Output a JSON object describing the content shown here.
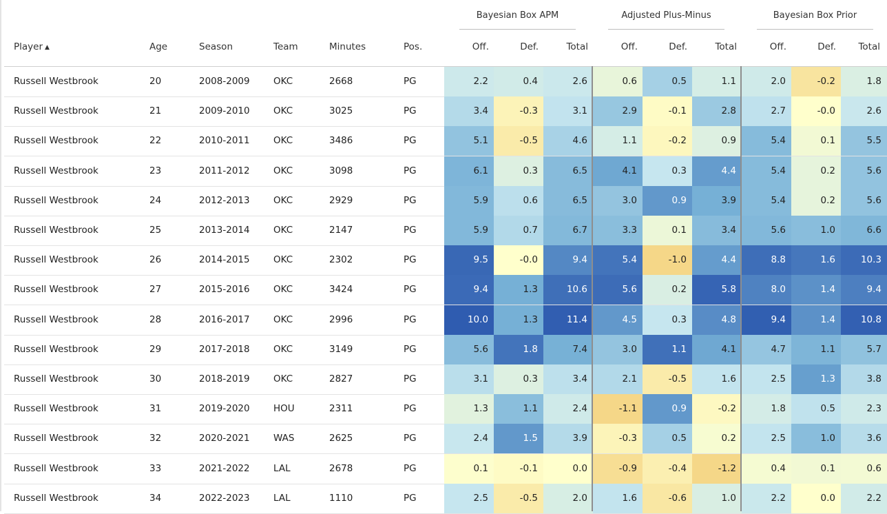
{
  "groups": {
    "bbapm": "Bayesian Box APM",
    "apm": "Adjusted Plus-Minus",
    "prior": "Bayesian Box Prior"
  },
  "headers": {
    "player": "Player",
    "sort_indicator": "▲",
    "age": "Age",
    "season": "Season",
    "team": "Team",
    "minutes": "Minutes",
    "pos": "Pos.",
    "off": "Off.",
    "def": "Def.",
    "total": "Total"
  },
  "rows": [
    {
      "player": "Russell Westbrook",
      "age": "20",
      "season": "2008-2009",
      "team": "OKC",
      "minutes": "2668",
      "pos": "PG",
      "bb_off": "2.2",
      "bb_def": "0.4",
      "bb_tot": "2.6",
      "apm_off": "0.6",
      "apm_def": "0.5",
      "apm_tot": "1.1",
      "pr_off": "2.0",
      "pr_def": "-0.2",
      "pr_tot": "1.8"
    },
    {
      "player": "Russell Westbrook",
      "age": "21",
      "season": "2009-2010",
      "team": "OKC",
      "minutes": "3025",
      "pos": "PG",
      "bb_off": "3.4",
      "bb_def": "-0.3",
      "bb_tot": "3.1",
      "apm_off": "2.9",
      "apm_def": "-0.1",
      "apm_tot": "2.8",
      "pr_off": "2.7",
      "pr_def": "-0.0",
      "pr_tot": "2.6"
    },
    {
      "player": "Russell Westbrook",
      "age": "22",
      "season": "2010-2011",
      "team": "OKC",
      "minutes": "3486",
      "pos": "PG",
      "bb_off": "5.1",
      "bb_def": "-0.5",
      "bb_tot": "4.6",
      "apm_off": "1.1",
      "apm_def": "-0.2",
      "apm_tot": "0.9",
      "pr_off": "5.4",
      "pr_def": "0.1",
      "pr_tot": "5.5"
    },
    {
      "player": "Russell Westbrook",
      "age": "23",
      "season": "2011-2012",
      "team": "OKC",
      "minutes": "3098",
      "pos": "PG",
      "bb_off": "6.1",
      "bb_def": "0.3",
      "bb_tot": "6.5",
      "apm_off": "4.1",
      "apm_def": "0.3",
      "apm_tot": "4.4",
      "pr_off": "5.4",
      "pr_def": "0.2",
      "pr_tot": "5.6"
    },
    {
      "player": "Russell Westbrook",
      "age": "24",
      "season": "2012-2013",
      "team": "OKC",
      "minutes": "2929",
      "pos": "PG",
      "bb_off": "5.9",
      "bb_def": "0.6",
      "bb_tot": "6.5",
      "apm_off": "3.0",
      "apm_def": "0.9",
      "apm_tot": "3.9",
      "pr_off": "5.4",
      "pr_def": "0.2",
      "pr_tot": "5.6"
    },
    {
      "player": "Russell Westbrook",
      "age": "25",
      "season": "2013-2014",
      "team": "OKC",
      "minutes": "2147",
      "pos": "PG",
      "bb_off": "5.9",
      "bb_def": "0.7",
      "bb_tot": "6.7",
      "apm_off": "3.3",
      "apm_def": "0.1",
      "apm_tot": "3.4",
      "pr_off": "5.6",
      "pr_def": "1.0",
      "pr_tot": "6.6"
    },
    {
      "player": "Russell Westbrook",
      "age": "26",
      "season": "2014-2015",
      "team": "OKC",
      "minutes": "2302",
      "pos": "PG",
      "bb_off": "9.5",
      "bb_def": "-0.0",
      "bb_tot": "9.4",
      "apm_off": "5.4",
      "apm_def": "-1.0",
      "apm_tot": "4.4",
      "pr_off": "8.8",
      "pr_def": "1.6",
      "pr_tot": "10.3"
    },
    {
      "player": "Russell Westbrook",
      "age": "27",
      "season": "2015-2016",
      "team": "OKC",
      "minutes": "3424",
      "pos": "PG",
      "bb_off": "9.4",
      "bb_def": "1.3",
      "bb_tot": "10.6",
      "apm_off": "5.6",
      "apm_def": "0.2",
      "apm_tot": "5.8",
      "pr_off": "8.0",
      "pr_def": "1.4",
      "pr_tot": "9.4"
    },
    {
      "player": "Russell Westbrook",
      "age": "28",
      "season": "2016-2017",
      "team": "OKC",
      "minutes": "2996",
      "pos": "PG",
      "bb_off": "10.0",
      "bb_def": "1.3",
      "bb_tot": "11.4",
      "apm_off": "4.5",
      "apm_def": "0.3",
      "apm_tot": "4.8",
      "pr_off": "9.4",
      "pr_def": "1.4",
      "pr_tot": "10.8"
    },
    {
      "player": "Russell Westbrook",
      "age": "29",
      "season": "2017-2018",
      "team": "OKC",
      "minutes": "3149",
      "pos": "PG",
      "bb_off": "5.6",
      "bb_def": "1.8",
      "bb_tot": "7.4",
      "apm_off": "3.0",
      "apm_def": "1.1",
      "apm_tot": "4.1",
      "pr_off": "4.7",
      "pr_def": "1.1",
      "pr_tot": "5.7"
    },
    {
      "player": "Russell Westbrook",
      "age": "30",
      "season": "2018-2019",
      "team": "OKC",
      "minutes": "2827",
      "pos": "PG",
      "bb_off": "3.1",
      "bb_def": "0.3",
      "bb_tot": "3.4",
      "apm_off": "2.1",
      "apm_def": "-0.5",
      "apm_tot": "1.6",
      "pr_off": "2.5",
      "pr_def": "1.3",
      "pr_tot": "3.8"
    },
    {
      "player": "Russell Westbrook",
      "age": "31",
      "season": "2019-2020",
      "team": "HOU",
      "minutes": "2311",
      "pos": "PG",
      "bb_off": "1.3",
      "bb_def": "1.1",
      "bb_tot": "2.4",
      "apm_off": "-1.1",
      "apm_def": "0.9",
      "apm_tot": "-0.2",
      "pr_off": "1.8",
      "pr_def": "0.5",
      "pr_tot": "2.3"
    },
    {
      "player": "Russell Westbrook",
      "age": "32",
      "season": "2020-2021",
      "team": "WAS",
      "minutes": "2625",
      "pos": "PG",
      "bb_off": "2.4",
      "bb_def": "1.5",
      "bb_tot": "3.9",
      "apm_off": "-0.3",
      "apm_def": "0.5",
      "apm_tot": "0.2",
      "pr_off": "2.5",
      "pr_def": "1.0",
      "pr_tot": "3.6"
    },
    {
      "player": "Russell Westbrook",
      "age": "33",
      "season": "2021-2022",
      "team": "LAL",
      "minutes": "2678",
      "pos": "PG",
      "bb_off": "0.1",
      "bb_def": "-0.1",
      "bb_tot": "0.0",
      "apm_off": "-0.9",
      "apm_def": "-0.4",
      "apm_tot": "-1.2",
      "pr_off": "0.4",
      "pr_def": "0.1",
      "pr_tot": "0.6"
    },
    {
      "player": "Russell Westbrook",
      "age": "34",
      "season": "2022-2023",
      "team": "LAL",
      "minutes": "1110",
      "pos": "PG",
      "bb_off": "2.5",
      "bb_def": "-0.5",
      "bb_tot": "2.0",
      "apm_off": "1.6",
      "apm_def": "-0.6",
      "apm_tot": "1.0",
      "pr_off": "2.2",
      "pr_def": "0.0",
      "pr_tot": "2.2"
    }
  ],
  "heatmap_colors": {
    "negative": "#f5d788",
    "neutral": "#ffffcc",
    "low_positive": "#c6e6ef",
    "mid_positive": "#76b0d6",
    "high_positive": "#2f5cb0"
  }
}
